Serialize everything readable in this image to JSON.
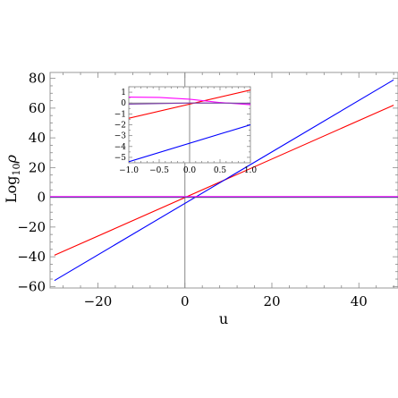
{
  "chart_data": [
    {
      "type": "line",
      "xlabel": "u",
      "ylabel": {
        "base": "Log",
        "sub": "10",
        "symbol": "ρ"
      },
      "xlim": [
        -31,
        49
      ],
      "ylim": [
        -61,
        84
      ],
      "xticks": [
        -20,
        0,
        20,
        40
      ],
      "xtick_labels": [
        "−20",
        "0",
        "20",
        "40"
      ],
      "yticks": [
        -60,
        -40,
        -20,
        0,
        20,
        40,
        60,
        80
      ],
      "ytick_labels": [
        "−60",
        "−40",
        "−20",
        "0",
        "20",
        "40",
        "60",
        "80"
      ],
      "grid": false,
      "series": [
        {
          "color": "#ff0000",
          "x": [
            -30,
            48
          ],
          "y": [
            -39,
            62
          ]
        },
        {
          "color": "#0000ff",
          "x": [
            -30,
            48
          ],
          "y": [
            -56,
            79
          ]
        },
        {
          "color": "#ff00ff",
          "x": [
            -31,
            49
          ],
          "y": [
            0.5,
            0.5
          ]
        },
        {
          "color": "#6a3ca8",
          "x": [
            -31,
            49
          ],
          "y": [
            0,
            0
          ]
        }
      ]
    },
    {
      "type": "line",
      "role": "inset",
      "xlim": [
        -1.0,
        1.0
      ],
      "ylim": [
        -5.5,
        1.5
      ],
      "xticks": [
        -1.0,
        -0.5,
        0.0,
        0.5,
        1.0
      ],
      "xtick_labels": [
        "−1.0",
        "−0.5",
        "0.0",
        "0.5",
        "1.0"
      ],
      "yticks": [
        1,
        0,
        -1,
        -2,
        -3,
        -4,
        -5
      ],
      "ytick_labels": [
        "1",
        "0",
        "−1",
        "−2",
        "−3",
        "−4",
        "−5"
      ],
      "grid": false,
      "series": [
        {
          "color": "#ff0000",
          "x": [
            -1.0,
            1.0
          ],
          "y": [
            -1.4,
            1.2
          ]
        },
        {
          "color": "#0000ff",
          "x": [
            -1.0,
            1.0
          ],
          "y": [
            -5.4,
            -2.0
          ]
        },
        {
          "color": "#ff00ff",
          "x": [
            -1.0,
            -0.5,
            0.0,
            0.5,
            1.0
          ],
          "y": [
            0.55,
            0.52,
            0.35,
            0.05,
            -0.15
          ]
        },
        {
          "color": "#8040b0",
          "x": [
            -1.0,
            -0.5,
            0.0,
            0.5,
            1.0
          ],
          "y": [
            -0.1,
            -0.05,
            0.0,
            0.0,
            -0.05
          ]
        }
      ]
    }
  ]
}
